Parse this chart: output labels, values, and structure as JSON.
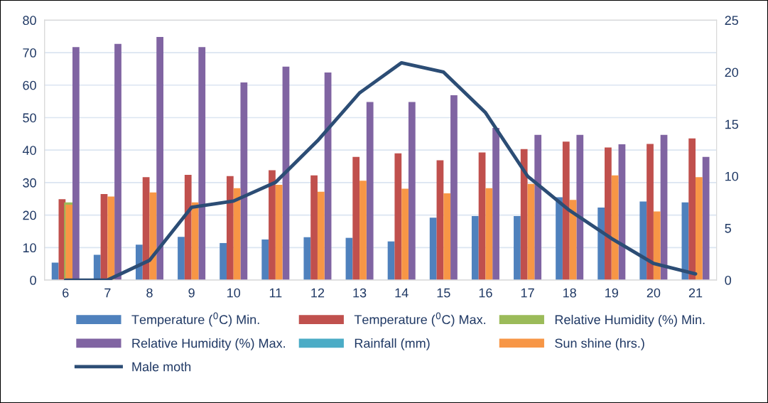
{
  "chart_data": {
    "type": "bar",
    "categories": [
      "6",
      "7",
      "8",
      "9",
      "10",
      "11",
      "12",
      "13",
      "14",
      "15",
      "16",
      "17",
      "18",
      "19",
      "20",
      "21"
    ],
    "series": [
      {
        "name": "Temperature ($^{0}$C) Min.",
        "color": "#4f81bd",
        "values": [
          5.4,
          7.8,
          10.9,
          13.3,
          11.4,
          12.5,
          13.2,
          13.0,
          11.9,
          19.2,
          19.7,
          19.7,
          25.5,
          22.3,
          24.2,
          23.9
        ]
      },
      {
        "name": "Temperature ($^{0}$C) Max.",
        "color": "#c0504d",
        "values": [
          24.9,
          26.5,
          31.7,
          32.4,
          32.0,
          33.8,
          32.2,
          37.9,
          39.0,
          36.9,
          39.3,
          40.3,
          42.6,
          40.8,
          41.9,
          43.6
        ]
      },
      {
        "name": "Relative Humidity (%) Min.",
        "color": "#9bbb59",
        "values": [
          23.9,
          null,
          null,
          null,
          null,
          null,
          null,
          null,
          null,
          null,
          null,
          null,
          null,
          null,
          null,
          null
        ]
      },
      {
        "name": "Relative Humidity (%) Max.",
        "color": "#8064a2",
        "values": [
          71.7,
          72.7,
          74.8,
          71.7,
          60.8,
          65.7,
          63.9,
          54.8,
          54.8,
          56.9,
          46.8,
          44.7,
          44.7,
          41.8,
          44.7,
          37.9
        ]
      },
      {
        "name": "Rainfall (mm)",
        "color": "#4bacc6",
        "values": [
          null,
          null,
          null,
          null,
          null,
          null,
          null,
          null,
          null,
          null,
          null,
          null,
          null,
          null,
          null,
          null
        ]
      },
      {
        "name": "Sun shine (hrs.)",
        "color": "#f79646",
        "values": [
          23.2,
          25.7,
          27.0,
          23.9,
          28.3,
          29.3,
          27.2,
          30.6,
          28.1,
          26.7,
          28.3,
          29.6,
          24.7,
          32.2,
          21.1,
          31.7
        ]
      },
      {
        "name": "Male moth",
        "type": "line",
        "axis": "y2",
        "color": "#2c4d75",
        "values": [
          0,
          0,
          1.9,
          7.0,
          7.6,
          9.4,
          13.4,
          18.0,
          20.9,
          20.0,
          16.1,
          10.0,
          6.7,
          4.0,
          1.6,
          0.6
        ]
      }
    ],
    "ylim": [
      0,
      80
    ],
    "yticks": [
      0,
      10,
      20,
      30,
      40,
      50,
      60,
      70,
      80
    ],
    "y2lim": [
      0,
      25
    ],
    "y2ticks": [
      0,
      5,
      10,
      15,
      20,
      25
    ],
    "grid": "y",
    "legend": "bottom"
  }
}
